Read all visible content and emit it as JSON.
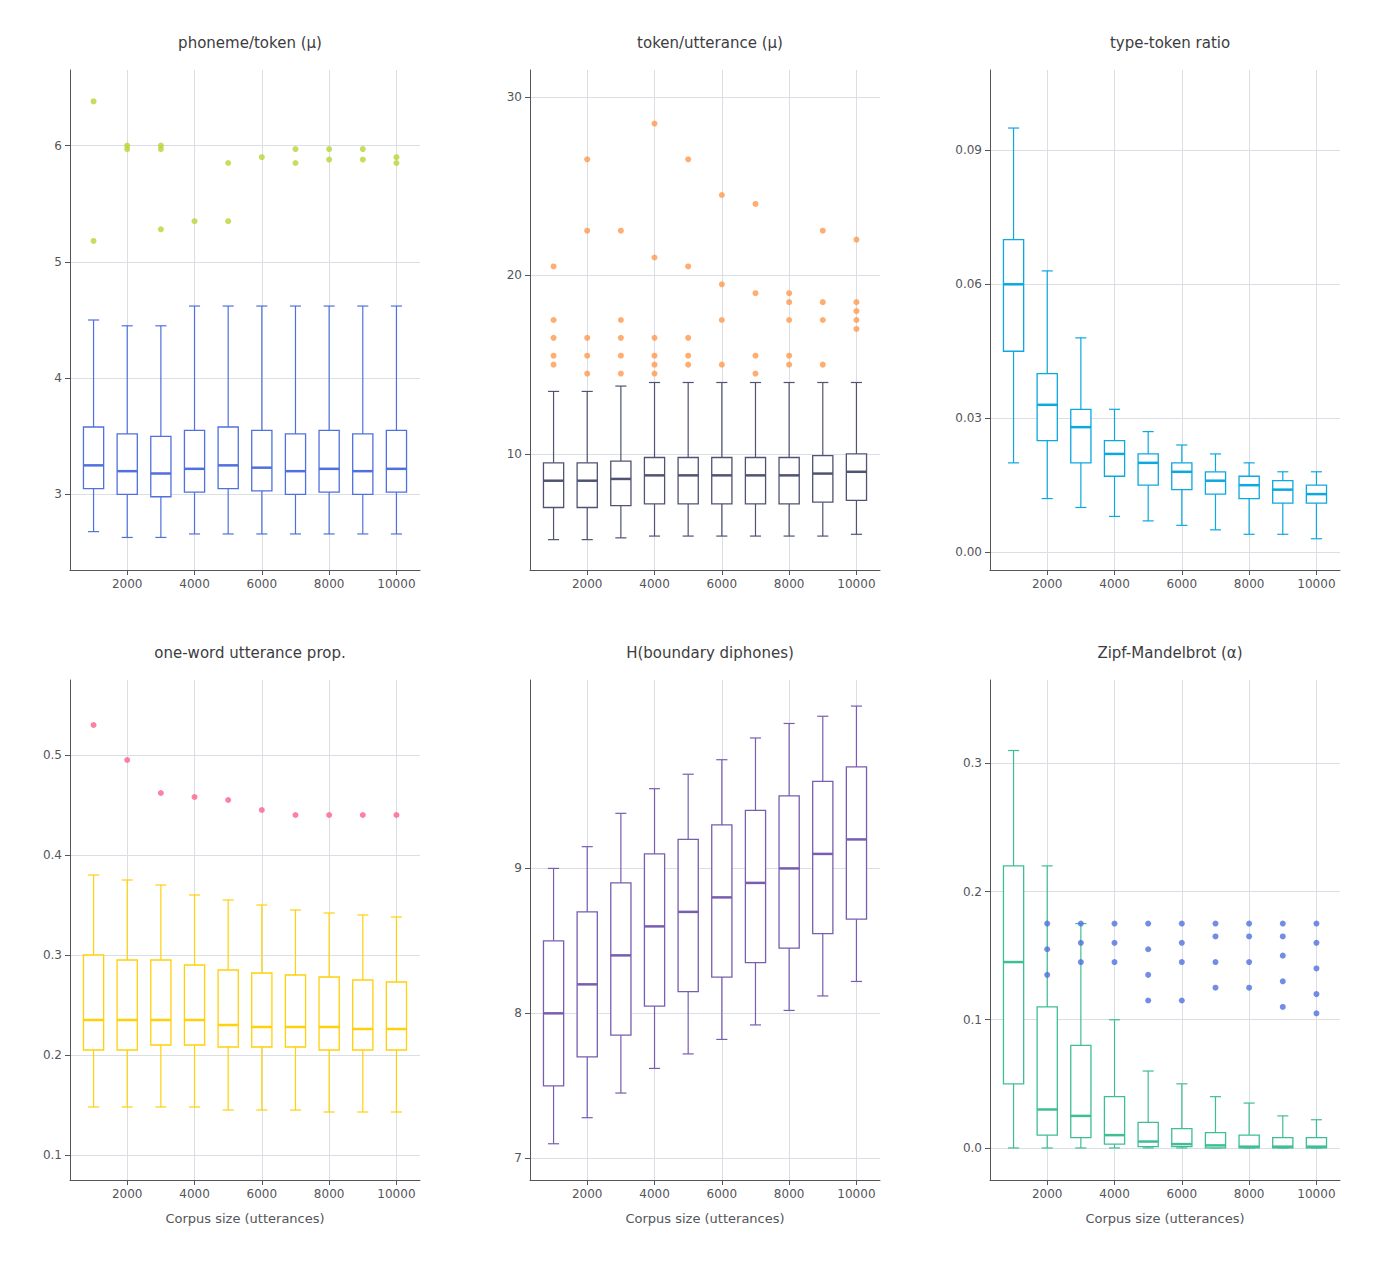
{
  "chart_data": [
    {
      "type": "boxplot",
      "title": "phoneme/token (μ)",
      "x": [
        1000,
        2000,
        3000,
        4000,
        5000,
        6000,
        7000,
        8000,
        9000,
        10000
      ],
      "medians": [
        3.25,
        3.2,
        3.18,
        3.22,
        3.25,
        3.23,
        3.2,
        3.22,
        3.2,
        3.22
      ],
      "q1": [
        3.05,
        3.0,
        2.98,
        3.02,
        3.05,
        3.03,
        3.0,
        3.02,
        3.0,
        3.02
      ],
      "q3": [
        3.58,
        3.52,
        3.5,
        3.55,
        3.58,
        3.55,
        3.52,
        3.55,
        3.52,
        3.55
      ],
      "whislo": [
        2.68,
        2.63,
        2.63,
        2.66,
        2.66,
        2.66,
        2.66,
        2.66,
        2.66,
        2.66
      ],
      "whishi": [
        4.5,
        4.45,
        4.45,
        4.62,
        4.62,
        4.62,
        4.62,
        4.62,
        4.62,
        4.62
      ],
      "out_x": [
        1000,
        1000,
        2000,
        2000,
        3000,
        3000,
        3000,
        4000,
        5000,
        5000,
        6000,
        7000,
        7000,
        8000,
        8000,
        9000,
        9000,
        10000,
        10000
      ],
      "out_y": [
        6.38,
        5.18,
        5.97,
        6.0,
        5.97,
        6.0,
        5.28,
        5.35,
        5.35,
        5.85,
        5.9,
        5.85,
        5.97,
        5.88,
        5.97,
        5.88,
        5.97,
        5.85,
        5.9
      ],
      "xlim": [
        300,
        10700
      ],
      "xticks": [
        2000,
        4000,
        6000,
        8000,
        10000
      ],
      "ylim": [
        2.35,
        6.65
      ],
      "yticks": [
        3,
        4,
        5,
        6
      ],
      "grid": true
    },
    {
      "type": "boxplot",
      "title": "token/utterance (μ)",
      "x": [
        1000,
        2000,
        3000,
        4000,
        5000,
        6000,
        7000,
        8000,
        9000,
        10000
      ],
      "medians": [
        8.5,
        8.5,
        8.6,
        8.8,
        8.8,
        8.8,
        8.8,
        8.8,
        8.9,
        9.0
      ],
      "q1": [
        7.0,
        7.0,
        7.1,
        7.2,
        7.2,
        7.2,
        7.2,
        7.2,
        7.3,
        7.4
      ],
      "q3": [
        9.5,
        9.5,
        9.6,
        9.8,
        9.8,
        9.8,
        9.8,
        9.8,
        9.9,
        10.0
      ],
      "whislo": [
        5.2,
        5.2,
        5.3,
        5.4,
        5.4,
        5.4,
        5.4,
        5.4,
        5.4,
        5.5
      ],
      "whishi": [
        13.5,
        13.5,
        13.8,
        14.0,
        14.0,
        14.0,
        14.0,
        14.0,
        14.0,
        14.0
      ],
      "out_x": [
        1000,
        1000,
        1000,
        1000,
        1000,
        2000,
        2000,
        2000,
        2000,
        2000,
        3000,
        3000,
        3000,
        3000,
        3000,
        4000,
        4000,
        4000,
        4000,
        4000,
        4000,
        5000,
        5000,
        5000,
        5000,
        5000,
        6000,
        6000,
        6000,
        6000,
        7000,
        7000,
        7000,
        7000,
        8000,
        8000,
        8000,
        8000,
        8000,
        9000,
        9000,
        9000,
        9000,
        10000,
        10000,
        10000,
        10000,
        10000
      ],
      "out_y": [
        20.5,
        17.5,
        16.5,
        15.5,
        15.0,
        26.5,
        22.5,
        16.5,
        15.5,
        14.5,
        22.5,
        17.5,
        16.5,
        15.5,
        14.5,
        28.5,
        21.0,
        16.5,
        15.5,
        15.0,
        14.5,
        26.5,
        20.5,
        16.5,
        15.5,
        15.0,
        24.5,
        19.5,
        17.5,
        15.0,
        24.0,
        19.0,
        15.5,
        14.5,
        19.0,
        18.5,
        17.5,
        15.5,
        15.0,
        22.5,
        18.5,
        17.5,
        15.0,
        22.0,
        18.5,
        18.0,
        17.5,
        17.0
      ],
      "xlim": [
        300,
        10700
      ],
      "xticks": [
        2000,
        4000,
        6000,
        8000,
        10000
      ],
      "ylim": [
        3.5,
        31.5
      ],
      "yticks": [
        10,
        20,
        30
      ],
      "grid": true
    },
    {
      "type": "boxplot",
      "title": "type-token ratio",
      "x": [
        1000,
        2000,
        3000,
        4000,
        5000,
        6000,
        7000,
        8000,
        9000,
        10000
      ],
      "medians": [
        0.06,
        0.033,
        0.028,
        0.022,
        0.02,
        0.018,
        0.016,
        0.015,
        0.014,
        0.013
      ],
      "q1": [
        0.045,
        0.025,
        0.02,
        0.017,
        0.015,
        0.014,
        0.013,
        0.012,
        0.011,
        0.011
      ],
      "q3": [
        0.07,
        0.04,
        0.032,
        0.025,
        0.022,
        0.02,
        0.018,
        0.017,
        0.016,
        0.015
      ],
      "whislo": [
        0.02,
        0.012,
        0.01,
        0.008,
        0.007,
        0.006,
        0.005,
        0.004,
        0.004,
        0.003
      ],
      "whishi": [
        0.095,
        0.063,
        0.048,
        0.032,
        0.027,
        0.024,
        0.022,
        0.02,
        0.018,
        0.018
      ],
      "xlim": [
        300,
        10700
      ],
      "xticks": [
        2000,
        4000,
        6000,
        8000,
        10000
      ],
      "ylim": [
        -0.004,
        0.108
      ],
      "yticks": [
        {
          "value": 0,
          "label": "0.00"
        },
        0.03,
        0.06,
        0.09
      ],
      "grid": true
    },
    {
      "type": "boxplot",
      "title": "one-word utterance prop.",
      "xlabel": "Corpus size (utterances)",
      "x": [
        1000,
        2000,
        3000,
        4000,
        5000,
        6000,
        7000,
        8000,
        9000,
        10000
      ],
      "medians": [
        0.235,
        0.235,
        0.235,
        0.235,
        0.23,
        0.228,
        0.228,
        0.228,
        0.226,
        0.226
      ],
      "q1": [
        0.205,
        0.205,
        0.21,
        0.21,
        0.208,
        0.208,
        0.208,
        0.205,
        0.205,
        0.205
      ],
      "q3": [
        0.3,
        0.295,
        0.295,
        0.29,
        0.285,
        0.282,
        0.28,
        0.278,
        0.275,
        0.273
      ],
      "whislo": [
        0.148,
        0.148,
        0.148,
        0.148,
        0.145,
        0.145,
        0.145,
        0.143,
        0.143,
        0.143
      ],
      "whishi": [
        0.38,
        0.375,
        0.37,
        0.36,
        0.355,
        0.35,
        0.345,
        0.342,
        0.34,
        0.338
      ],
      "out_x": [
        1000,
        2000,
        3000,
        4000,
        5000,
        6000,
        7000,
        8000,
        9000,
        10000
      ],
      "out_y": [
        0.53,
        0.495,
        0.462,
        0.458,
        0.455,
        0.445,
        0.44,
        0.44,
        0.44,
        0.44
      ],
      "xlim": [
        300,
        10700
      ],
      "xticks": [
        2000,
        4000,
        6000,
        8000,
        10000
      ],
      "ylim": [
        0.075,
        0.575
      ],
      "yticks": [
        0.1,
        0.2,
        0.3,
        0.4,
        0.5
      ],
      "grid": true
    },
    {
      "type": "boxplot",
      "title": "H(boundary diphones)",
      "xlabel": "Corpus size (utterances)",
      "x": [
        1000,
        2000,
        3000,
        4000,
        5000,
        6000,
        7000,
        8000,
        9000,
        10000
      ],
      "medians": [
        8.0,
        8.2,
        8.4,
        8.6,
        8.7,
        8.8,
        8.9,
        9.0,
        9.1,
        9.2
      ],
      "q1": [
        7.5,
        7.7,
        7.85,
        8.05,
        8.15,
        8.25,
        8.35,
        8.45,
        8.55,
        8.65
      ],
      "q3": [
        8.5,
        8.7,
        8.9,
        9.1,
        9.2,
        9.3,
        9.4,
        9.5,
        9.6,
        9.7
      ],
      "whislo": [
        7.1,
        7.28,
        7.45,
        7.62,
        7.72,
        7.82,
        7.92,
        8.02,
        8.12,
        8.22
      ],
      "whishi": [
        9.0,
        9.15,
        9.38,
        9.55,
        9.65,
        9.75,
        9.9,
        10.0,
        10.05,
        10.12
      ],
      "xlim": [
        300,
        10700
      ],
      "xticks": [
        2000,
        4000,
        6000,
        8000,
        10000
      ],
      "ylim": [
        6.85,
        10.3
      ],
      "yticks": [
        7,
        8,
        9
      ],
      "grid": true
    },
    {
      "type": "boxplot",
      "title": "Zipf-Mandelbrot (α)",
      "xlabel": "Corpus size (utterances)",
      "x": [
        1000,
        2000,
        3000,
        4000,
        5000,
        6000,
        7000,
        8000,
        9000,
        10000
      ],
      "medians": [
        0.145,
        0.03,
        0.025,
        0.01,
        0.005,
        0.003,
        0.002,
        0.001,
        0.001,
        0.001
      ],
      "q1": [
        0.05,
        0.01,
        0.008,
        0.003,
        0.001,
        0.001,
        0.0,
        0.0,
        0.0,
        0.0
      ],
      "q3": [
        0.22,
        0.11,
        0.08,
        0.04,
        0.02,
        0.015,
        0.012,
        0.01,
        0.008,
        0.008
      ],
      "whislo": [
        0.0,
        0.0,
        0.0,
        0.0,
        0.0,
        0.0,
        0.0,
        0.0,
        0.0,
        0.0
      ],
      "whishi": [
        0.31,
        0.22,
        0.175,
        0.1,
        0.06,
        0.05,
        0.04,
        0.035,
        0.025,
        0.022
      ],
      "out_x": [
        2000,
        2000,
        2000,
        3000,
        3000,
        3000,
        4000,
        4000,
        4000,
        5000,
        5000,
        5000,
        5000,
        6000,
        6000,
        6000,
        6000,
        7000,
        7000,
        7000,
        7000,
        8000,
        8000,
        8000,
        8000,
        9000,
        9000,
        9000,
        9000,
        9000,
        10000,
        10000,
        10000,
        10000,
        10000
      ],
      "out_y": [
        0.175,
        0.155,
        0.135,
        0.175,
        0.16,
        0.145,
        0.175,
        0.16,
        0.145,
        0.175,
        0.155,
        0.135,
        0.115,
        0.175,
        0.16,
        0.145,
        0.115,
        0.175,
        0.165,
        0.145,
        0.125,
        0.175,
        0.165,
        0.145,
        0.125,
        0.175,
        0.165,
        0.15,
        0.13,
        0.11,
        0.175,
        0.16,
        0.14,
        0.12,
        0.105
      ],
      "xlim": [
        300,
        10700
      ],
      "xticks": [
        2000,
        4000,
        6000,
        8000,
        10000
      ],
      "ylim": [
        -0.025,
        0.365
      ],
      "yticks": [
        {
          "value": 0,
          "label": "0.0"
        },
        0.1,
        0.2,
        0.3
      ],
      "grid": true
    }
  ]
}
